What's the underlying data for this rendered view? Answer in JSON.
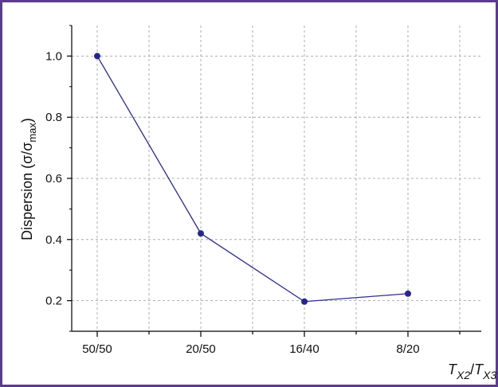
{
  "chart_data": {
    "type": "line",
    "categories": [
      "50/50",
      "20/50",
      "16/40",
      "8/20"
    ],
    "values": [
      1.0,
      0.42,
      0.197,
      0.223
    ],
    "ylim": [
      0.1,
      1.1
    ],
    "yticks": [
      "0.2",
      "0.4",
      "0.6",
      "0.8",
      "1.0"
    ],
    "ylabel": {
      "main": "Dispersion (σ/σ",
      "sub": "max",
      "close": ")"
    },
    "xlabel": {
      "t1": "T",
      "s1": "X2",
      "sep": "/",
      "t2": "T",
      "s2": "X3"
    },
    "grid": true,
    "line_color": "#2b2b8f",
    "marker_color": "#26268a",
    "frame_color": "#5b3c8c"
  }
}
